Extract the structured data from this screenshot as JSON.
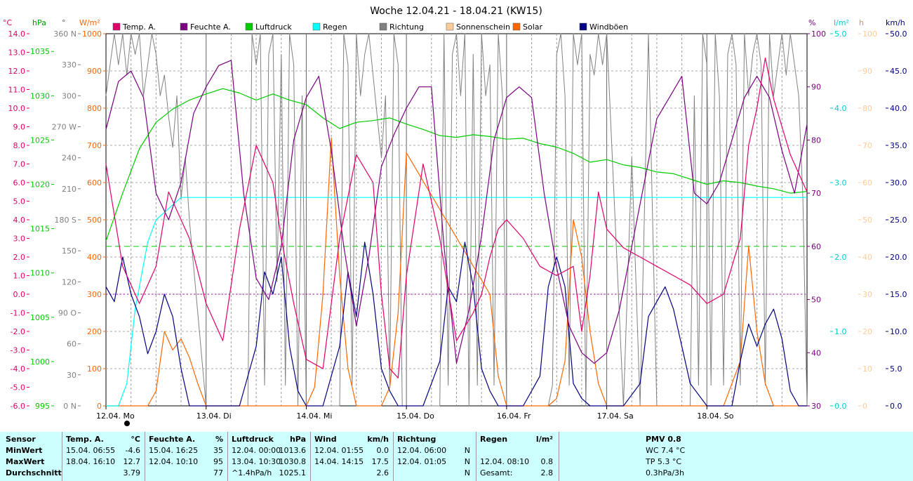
{
  "title": "Woche 12.04.21 - 18.04.21 (KW15)",
  "legend": [
    {
      "label": "Temp. A.",
      "color": "#e0006a"
    },
    {
      "label": "Feuchte A.",
      "color": "#7a0080"
    },
    {
      "label": "Luftdruck",
      "color": "#00cc00"
    },
    {
      "label": "Regen",
      "color": "#00ffff"
    },
    {
      "label": "Richtung",
      "color": "#808080"
    },
    {
      "label": "Sonnenschein",
      "color": "#ffcc99"
    },
    {
      "label": "Solar",
      "color": "#ff6600"
    },
    {
      "label": "Windböen",
      "color": "#000080"
    }
  ],
  "axis_units": {
    "temp": "°C",
    "pressure": "hPa",
    "solar": "W/m²",
    "direction": "°",
    "humidity": "%",
    "rain": "l/m²",
    "sun": "h",
    "wind": "km/h"
  },
  "chart_data": {
    "type": "line",
    "title": "Woche 12.04.21 - 18.04.21 (KW15)",
    "x_labels": [
      "12.04. Mo",
      "13.04. Di",
      "14.04. Mi",
      "15.04. Do",
      "16.04. Fr",
      "17.04. Sa",
      "18.04. So"
    ],
    "x_range_hours": [
      0,
      168
    ],
    "axes": {
      "temp": {
        "ticks": [
          "14.0",
          "13.0",
          "12.0",
          "11.0",
          "10.0",
          "9.0",
          "8.0",
          "7.0",
          "6.0",
          "5.0",
          "4.0",
          "3.0",
          "2.0",
          "1.0",
          "0.0",
          "-1.0",
          "-2.0",
          "-3.0",
          "-4.0",
          "-5.0",
          "-6.0"
        ],
        "range": [
          -6,
          14
        ],
        "color": "#e0006a"
      },
      "pressure": {
        "ticks": [
          "1035",
          "1030",
          "1025",
          "1020",
          "1015",
          "1010",
          "1005",
          "1000",
          "995"
        ],
        "range": [
          995,
          1037
        ],
        "color": "#00cc00"
      },
      "solar": {
        "ticks": [
          "1000",
          "900",
          "800",
          "700",
          "600",
          "500",
          "400",
          "300",
          "200",
          "100",
          "0"
        ],
        "range": [
          0,
          1000
        ],
        "color": "#ff6600"
      },
      "direction": {
        "ticks": [
          "360 N",
          "330",
          "300",
          "270 W",
          "240",
          "210",
          "180 S",
          "150",
          "120",
          "90 O",
          "60",
          "30",
          "0 N"
        ],
        "range": [
          0,
          360
        ],
        "color": "#808080"
      },
      "humidity": {
        "ticks": [
          "100",
          "90",
          "80",
          "70",
          "60",
          "50",
          "40",
          "30"
        ],
        "range": [
          30,
          100
        ],
        "color": "#7a0080"
      },
      "rain": {
        "ticks": [
          "5.0",
          "4.0",
          "3.0",
          "2.0",
          "1.0",
          "0.0"
        ],
        "range": [
          0,
          5
        ],
        "color": "#00cccc"
      },
      "sun": {
        "ticks": [
          "100",
          "90",
          "80",
          "70",
          "60",
          "50",
          "40",
          "30",
          "20",
          "10",
          "0"
        ],
        "range": [
          0,
          100
        ],
        "color": "#ffcc99"
      },
      "wind": {
        "ticks": [
          "50.0",
          "45.0",
          "40.0",
          "35.0",
          "30.0",
          "25.0",
          "20.0",
          "15.0",
          "10.0",
          "5.0",
          "0.0"
        ],
        "range": [
          0,
          50
        ],
        "color": "#000080"
      }
    },
    "reference_lines": [
      {
        "axis": "temp",
        "value": 0,
        "style": "dotted",
        "color": "#aa00aa"
      },
      {
        "axis": "humidity",
        "value": 60,
        "style": "dashed",
        "color": "#00cc00"
      }
    ],
    "series": [
      {
        "name": "Temp. A.",
        "axis": "temp",
        "color": "#e0006a",
        "x": [
          0,
          4,
          8,
          12,
          15,
          20,
          24,
          28,
          32,
          36,
          40,
          42,
          45,
          48,
          52,
          56,
          60,
          64,
          66,
          68,
          70,
          72,
          76,
          80,
          84,
          88,
          90,
          92,
          94,
          96,
          100,
          104,
          108,
          112,
          114,
          116,
          118,
          120,
          124,
          128,
          132,
          136,
          140,
          144,
          148,
          152,
          154,
          156,
          158,
          160,
          162,
          164,
          166,
          168
        ],
        "y": [
          7.0,
          1.5,
          -0.5,
          1.5,
          5.5,
          3.0,
          -0.5,
          -2.5,
          3.5,
          8.0,
          6.0,
          3.0,
          -0.5,
          -3.5,
          -4.0,
          3.0,
          7.5,
          6.0,
          0.0,
          -4.0,
          -4.5,
          1.0,
          7.0,
          3.0,
          -2.5,
          -1.0,
          0.0,
          2.0,
          3.5,
          4.0,
          3.0,
          1.5,
          1.0,
          1.5,
          -2.0,
          1.0,
          5.5,
          3.5,
          2.5,
          2.0,
          1.5,
          1.0,
          0.5,
          -0.5,
          0.0,
          3.0,
          8.0,
          10.0,
          12.7,
          10.5,
          9.0,
          7.5,
          6.5,
          5.5
        ]
      },
      {
        "name": "Feuchte A.",
        "axis": "humidity",
        "color": "#7a0080",
        "x": [
          0,
          3,
          6,
          9,
          12,
          15,
          18,
          21,
          24,
          27,
          30,
          33,
          36,
          39,
          42,
          45,
          48,
          51,
          54,
          57,
          60,
          63,
          66,
          69,
          72,
          75,
          78,
          81,
          84,
          87,
          90,
          93,
          96,
          99,
          102,
          105,
          108,
          111,
          114,
          117,
          120,
          123,
          126,
          129,
          132,
          135,
          138,
          141,
          144,
          147,
          150,
          153,
          156,
          159,
          162,
          165,
          168
        ],
        "y": [
          82,
          91,
          93,
          88,
          70,
          65,
          72,
          85,
          90,
          94,
          95,
          70,
          54,
          50,
          60,
          80,
          88,
          92,
          78,
          60,
          45,
          58,
          75,
          81,
          86,
          90,
          90,
          60,
          38,
          48,
          62,
          80,
          88,
          90,
          88,
          70,
          56,
          45,
          40,
          38,
          40,
          48,
          60,
          72,
          84,
          88,
          92,
          70,
          68,
          72,
          80,
          88,
          92,
          88,
          78,
          70,
          83
        ]
      },
      {
        "name": "Luftdruck",
        "axis": "pressure",
        "color": "#00cc00",
        "x": [
          0,
          4,
          8,
          12,
          16,
          20,
          24,
          28,
          32,
          36,
          40,
          44,
          48,
          52,
          56,
          60,
          64,
          68,
          72,
          76,
          80,
          84,
          88,
          92,
          96,
          100,
          104,
          108,
          112,
          116,
          120,
          124,
          128,
          132,
          136,
          140,
          144,
          148,
          152,
          156,
          160,
          164,
          168
        ],
        "y": [
          1013.6,
          1019,
          1024,
          1027,
          1028.5,
          1029.5,
          1030.2,
          1030.8,
          1030.3,
          1029.5,
          1030.2,
          1029.5,
          1029.0,
          1027.5,
          1026.3,
          1027.0,
          1027.2,
          1027.5,
          1026.8,
          1026.2,
          1025.5,
          1025.3,
          1025.6,
          1025.4,
          1025.1,
          1025.2,
          1024.6,
          1024.2,
          1023.5,
          1022.5,
          1022.8,
          1022.2,
          1021.9,
          1021.4,
          1021.2,
          1020.6,
          1020.0,
          1020.4,
          1020.2,
          1019.8,
          1019.5,
          1019.0,
          1019.2
        ]
      },
      {
        "name": "Regen",
        "axis": "rain",
        "color": "#00ffff",
        "x": [
          0,
          3,
          5,
          6,
          7,
          8,
          9,
          10,
          12,
          14,
          16,
          18,
          20,
          168
        ],
        "y": [
          0,
          0,
          0.3,
          0.8,
          1.3,
          1.6,
          1.9,
          2.2,
          2.5,
          2.6,
          2.7,
          2.8,
          2.8,
          2.8
        ]
      },
      {
        "name": "Windböen",
        "axis": "wind",
        "color": "#000080",
        "x": [
          0,
          2,
          4,
          6,
          8,
          10,
          12,
          14,
          16,
          18,
          20,
          22,
          24,
          28,
          32,
          36,
          38,
          40,
          42,
          44,
          46,
          48,
          52,
          56,
          58,
          60,
          62,
          64,
          66,
          68,
          70,
          72,
          76,
          80,
          82,
          84,
          86,
          88,
          90,
          92,
          94,
          96,
          100,
          104,
          106,
          108,
          110,
          112,
          114,
          116,
          118,
          120,
          124,
          128,
          130,
          132,
          134,
          136,
          140,
          144,
          146,
          148,
          150,
          152,
          154,
          156,
          158,
          160,
          162,
          164,
          166,
          168
        ],
        "y": [
          16,
          14,
          20,
          15,
          12,
          7,
          10,
          15,
          12,
          5,
          0,
          0,
          0,
          0,
          0,
          8,
          18,
          15,
          20,
          8,
          2,
          0,
          0,
          8,
          18,
          12,
          22,
          15,
          5,
          2,
          0,
          0,
          0,
          6,
          16,
          14,
          22,
          16,
          5,
          2,
          0,
          0,
          0,
          4,
          16,
          20,
          16,
          3,
          1,
          0,
          0,
          0,
          0,
          3,
          12,
          14,
          16,
          13,
          3,
          0,
          0,
          0,
          0,
          6,
          11,
          8,
          11,
          13,
          9,
          2,
          0,
          0
        ]
      },
      {
        "name": "Solar",
        "axis": "solar",
        "color": "#ff6600",
        "x": [
          0,
          10,
          12,
          14,
          16,
          18,
          20,
          22,
          24,
          44,
          46,
          48,
          50,
          52,
          54,
          56,
          58,
          60,
          62,
          64,
          66,
          68,
          70,
          72,
          92,
          94,
          96,
          98,
          100,
          102,
          104,
          106,
          108,
          110,
          112,
          114,
          116,
          118,
          120,
          124,
          128,
          140,
          142,
          144,
          146,
          148,
          150,
          152,
          154,
          156,
          158,
          160,
          162,
          164,
          166,
          168
        ],
        "y": [
          0,
          0,
          40,
          200,
          150,
          180,
          130,
          60,
          0,
          0,
          0,
          0,
          50,
          300,
          720,
          350,
          100,
          0,
          0,
          0,
          0,
          50,
          250,
          680,
          300,
          80,
          0,
          0,
          0,
          0,
          0,
          0,
          20,
          120,
          500,
          400,
          200,
          60,
          0,
          0,
          0,
          0,
          0,
          0,
          0,
          0,
          60,
          120,
          430,
          200,
          60,
          0,
          0,
          0,
          0,
          0
        ]
      },
      {
        "name": "Richtung",
        "axis": "direction",
        "color": "#808080",
        "x": [
          0,
          1,
          2,
          3,
          4,
          5,
          6,
          7,
          8,
          9,
          10,
          11,
          12,
          13,
          14,
          15,
          16,
          17,
          18,
          19,
          20,
          24,
          34,
          35,
          36,
          37,
          38,
          39,
          40,
          41,
          42,
          43,
          44,
          45,
          46,
          47,
          48,
          56,
          57,
          58,
          59,
          60,
          61,
          62,
          63,
          64,
          65,
          66,
          67,
          68,
          69,
          70,
          71,
          72,
          80,
          81,
          82,
          83,
          84,
          85,
          86,
          87,
          88,
          89,
          90,
          91,
          92,
          93,
          94,
          95,
          96,
          106,
          107,
          108,
          109,
          110,
          111,
          112,
          113,
          114,
          115,
          116,
          117,
          118,
          119,
          120,
          124,
          126,
          128,
          130,
          132,
          140,
          141,
          142,
          143,
          144,
          145,
          146,
          147,
          148,
          149,
          150,
          151,
          152,
          153,
          154,
          155,
          156,
          157,
          158,
          159,
          160,
          161,
          162,
          163,
          164,
          165,
          166,
          167,
          168
        ],
        "y": [
          300,
          330,
          360,
          330,
          360,
          320,
          360,
          340,
          360,
          300,
          330,
          360,
          340,
          300,
          320,
          280,
          250,
          300,
          200,
          240,
          180,
          0,
          0,
          360,
          330,
          360,
          20,
          340,
          360,
          120,
          340,
          20,
          360,
          330,
          0,
          300,
          0,
          0,
          360,
          330,
          20,
          360,
          300,
          340,
          360,
          320,
          280,
          240,
          300,
          20,
          360,
          330,
          0,
          0,
          0,
          360,
          20,
          340,
          360,
          300,
          360,
          0,
          340,
          20,
          360,
          300,
          330,
          20,
          360,
          300,
          0,
          0,
          20,
          340,
          360,
          300,
          20,
          360,
          330,
          360,
          0,
          340,
          320,
          360,
          330,
          360,
          0,
          240,
          0,
          360,
          0,
          0,
          300,
          20,
          360,
          330,
          20,
          360,
          300,
          20,
          340,
          360,
          330,
          20,
          360,
          300,
          340,
          360,
          330,
          20,
          360,
          300,
          330,
          360,
          320,
          360,
          330,
          300,
          200,
          0
        ]
      }
    ]
  },
  "footer": {
    "headers": {
      "sensor": "Sensor",
      "temp": "Temp. A.",
      "temp_unit": "°C",
      "hum": "Feuchte A.",
      "hum_unit": "%",
      "press": "Luftdruck",
      "press_unit": "hPa",
      "wind": "Wind",
      "wind_unit": "km/h",
      "dir": "Richtung",
      "rain": "Regen",
      "rain_unit": "l/m²",
      "pmv": "PMV 0.8"
    },
    "row_labels": [
      "MinWert",
      "MaxWert",
      "Durchschnitt"
    ],
    "temp": [
      [
        "15.04.  06:55",
        "-4.6"
      ],
      [
        "18.04.  16:10",
        "12.7"
      ],
      [
        "",
        "3.79"
      ]
    ],
    "hum": [
      [
        "15.04.  16:25",
        "35"
      ],
      [
        "12.04.  10:10",
        "95"
      ],
      [
        "",
        "77"
      ]
    ],
    "press": [
      [
        "12.04.  00:00",
        "1013.6"
      ],
      [
        "13.04.  10:30",
        "1030.8"
      ],
      [
        "^1.4hPa/h",
        "1025.1"
      ]
    ],
    "wind": [
      [
        "12.04.  01:55",
        "0.0"
      ],
      [
        "14.04.  14:15",
        "17.5"
      ],
      [
        "",
        "2.6"
      ]
    ],
    "dir": [
      [
        "12.04.  06:00",
        "N"
      ],
      [
        "12.04.  01:05",
        "N"
      ],
      [
        "",
        "N"
      ]
    ],
    "rain": [
      [
        "",
        ""
      ],
      [
        "12.04.  08:10",
        "0.8"
      ],
      [
        "Gesamt:",
        "2.8"
      ]
    ],
    "pmv": [
      "WC 7.4 °C",
      "TP 5.3 °C",
      "0.3hPa/3h"
    ]
  }
}
